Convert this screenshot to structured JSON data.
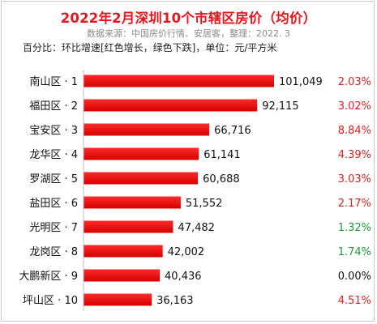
{
  "header": {
    "title": "2022年2月深圳10个市辖区房价（均价）",
    "source": "数据来源：中国房价行情、安居客，整理：2022. 3",
    "note": "百分比：环比增速[红色增长，绿色下跌]，单位：元/平方米"
  },
  "colors": {
    "bar_top": "#ff2a2a",
    "bar_bottom": "#d40000",
    "pct_red": "#e01e1e",
    "pct_green": "#1a9a3a",
    "pct_neutral": "#111111"
  },
  "chart_data": {
    "type": "bar",
    "orientation": "horizontal",
    "categories": [
      "南山区 · 1",
      "福田区 · 2",
      "宝安区 · 3",
      "龙华区 · 4",
      "罗湖区 · 5",
      "盐田区 · 6",
      "光明区 · 7",
      "龙岗区 · 8",
      "大鹏新区 · 9",
      "坪山区 · 10"
    ],
    "values": [
      101049,
      92115,
      66716,
      61141,
      60688,
      51552,
      47482,
      42002,
      40436,
      36163
    ],
    "value_labels": [
      "101,049",
      "92,115",
      "66,716",
      "61,141",
      "60,688",
      "51,552",
      "47,482",
      "42,002",
      "40,436",
      "36,163"
    ],
    "growth_labels": [
      "2.03%",
      "3.02%",
      "8.84%",
      "4.39%",
      "3.03%",
      "2.17%",
      "1.32%",
      "1.74%",
      "0.00%",
      "4.51%"
    ],
    "growth_colors": [
      "red",
      "red",
      "red",
      "red",
      "red",
      "red",
      "green",
      "green",
      "neutral",
      "red"
    ],
    "xlim": [
      0,
      101049
    ],
    "grid": false,
    "legend": "none"
  }
}
